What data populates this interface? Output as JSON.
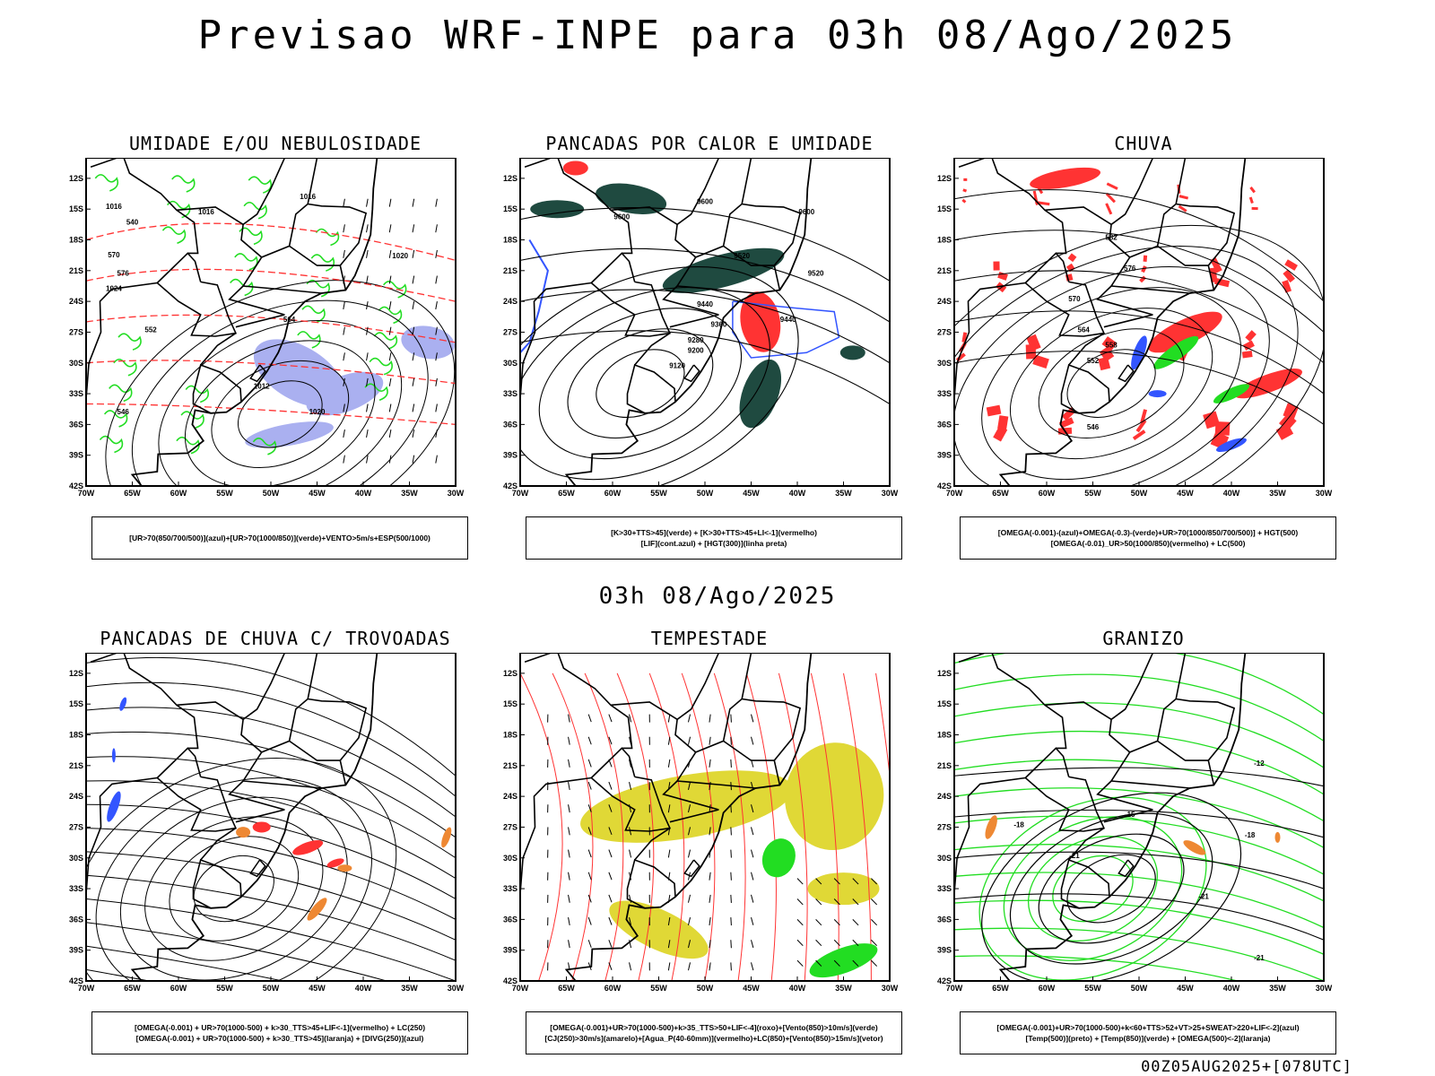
{
  "header": {
    "title": "Previsao WRF-INPE  para 03h 08/Ago/2025"
  },
  "subheader": {
    "title": "03h 08/Ago/2025"
  },
  "footer": {
    "run_label": "00Z05AUG2025+[078UTC]"
  },
  "axes": {
    "lat_labels": [
      "12S",
      "15S",
      "18S",
      "21S",
      "24S",
      "27S",
      "30S",
      "33S",
      "36S",
      "39S",
      "42S"
    ],
    "lon_labels": [
      "70W",
      "65W",
      "60W",
      "55W",
      "50W",
      "45W",
      "40W",
      "35W",
      "30W"
    ]
  },
  "colors": {
    "blue": "#3355ff",
    "green": "#22dd22",
    "red": "#ff3333",
    "dark_green": "#1f4a40",
    "yellow": "#e0d836",
    "orange": "#ee8833",
    "light_blue": "#aab0f0"
  },
  "panels": [
    {
      "title": "UMIDADE E/OU NEBULOSIDADE",
      "legend": [
        "[UR>70(850/700/500)](azul)+[UR>70(1000/850)](verde)+VENTO>5m/s+ESP(500/1000)"
      ],
      "contour_labels": [
        "1016",
        "1016",
        "1020",
        "1024",
        "1012",
        "1016",
        "1020",
        "564",
        "552",
        "546",
        "540",
        "570",
        "576"
      ]
    },
    {
      "title": "PANCADAS POR CALOR E UMIDADE",
      "legend": [
        "[K>30+TTS>45](verde) + [K>30+TTS>45+LI<-1](vermelho)",
        "[LIF](cont.azul) + [HGT(300)](linha preta)"
      ],
      "contour_labels": [
        "9600",
        "9600",
        "9600",
        "9520",
        "9520",
        "9440",
        "9440",
        "9360",
        "9280",
        "9200",
        "9120"
      ]
    },
    {
      "title": "CHUVA",
      "legend": [
        "[OMEGA(-0.001)-(azul)+OMEGA(-0.3)-(verde)+UR>70(1000/850/700/500)] + HGT(500)",
        "[OMEGA(-0.01)_UR>50(1000/850)(vermelho) + LC(500)"
      ],
      "contour_labels": [
        "582",
        "576",
        "570",
        "564",
        "558",
        "552",
        "546"
      ]
    },
    {
      "title": "PANCADAS DE CHUVA C/ TROVOADAS",
      "legend": [
        "[OMEGA(-0.001) + UR>70(1000-500) + k>30_TTS>45+LIF<-1](vermelho) + LC(250)",
        "[OMEGA(-0.001) + UR>70(1000-500) + k>30_TTS>45](laranja) + [DIVG(250)](azul)"
      ],
      "contour_labels": []
    },
    {
      "title": "TEMPESTADE",
      "legend": [
        "[OMEGA(-0.001)+UR>70(1000-500)+k>35_TTS>50+LIF<-4](roxo)+[Vento(850)>10m/s](verde)",
        "[CJ(250)>30m/s](amarelo)+[Agua_P(40-60mm)](vermelho)+LC(850)+[Vento(850)>15m/s](vetor)"
      ],
      "contour_labels": []
    },
    {
      "title": "GRANIZO",
      "legend": [
        "[OMEGA(-0.001)+UR>70(1000-500)+k<60+TTS>52+VT>25+SWEAT>220+LIF<-2](azul)",
        "[Temp(500)](preto) + [Temp(850)](verde) + [OMEGA(500)<-2](laranja)"
      ],
      "contour_labels": [
        "-12",
        "-15",
        "-18",
        "-18",
        "-21",
        "-21",
        "-21"
      ]
    }
  ]
}
